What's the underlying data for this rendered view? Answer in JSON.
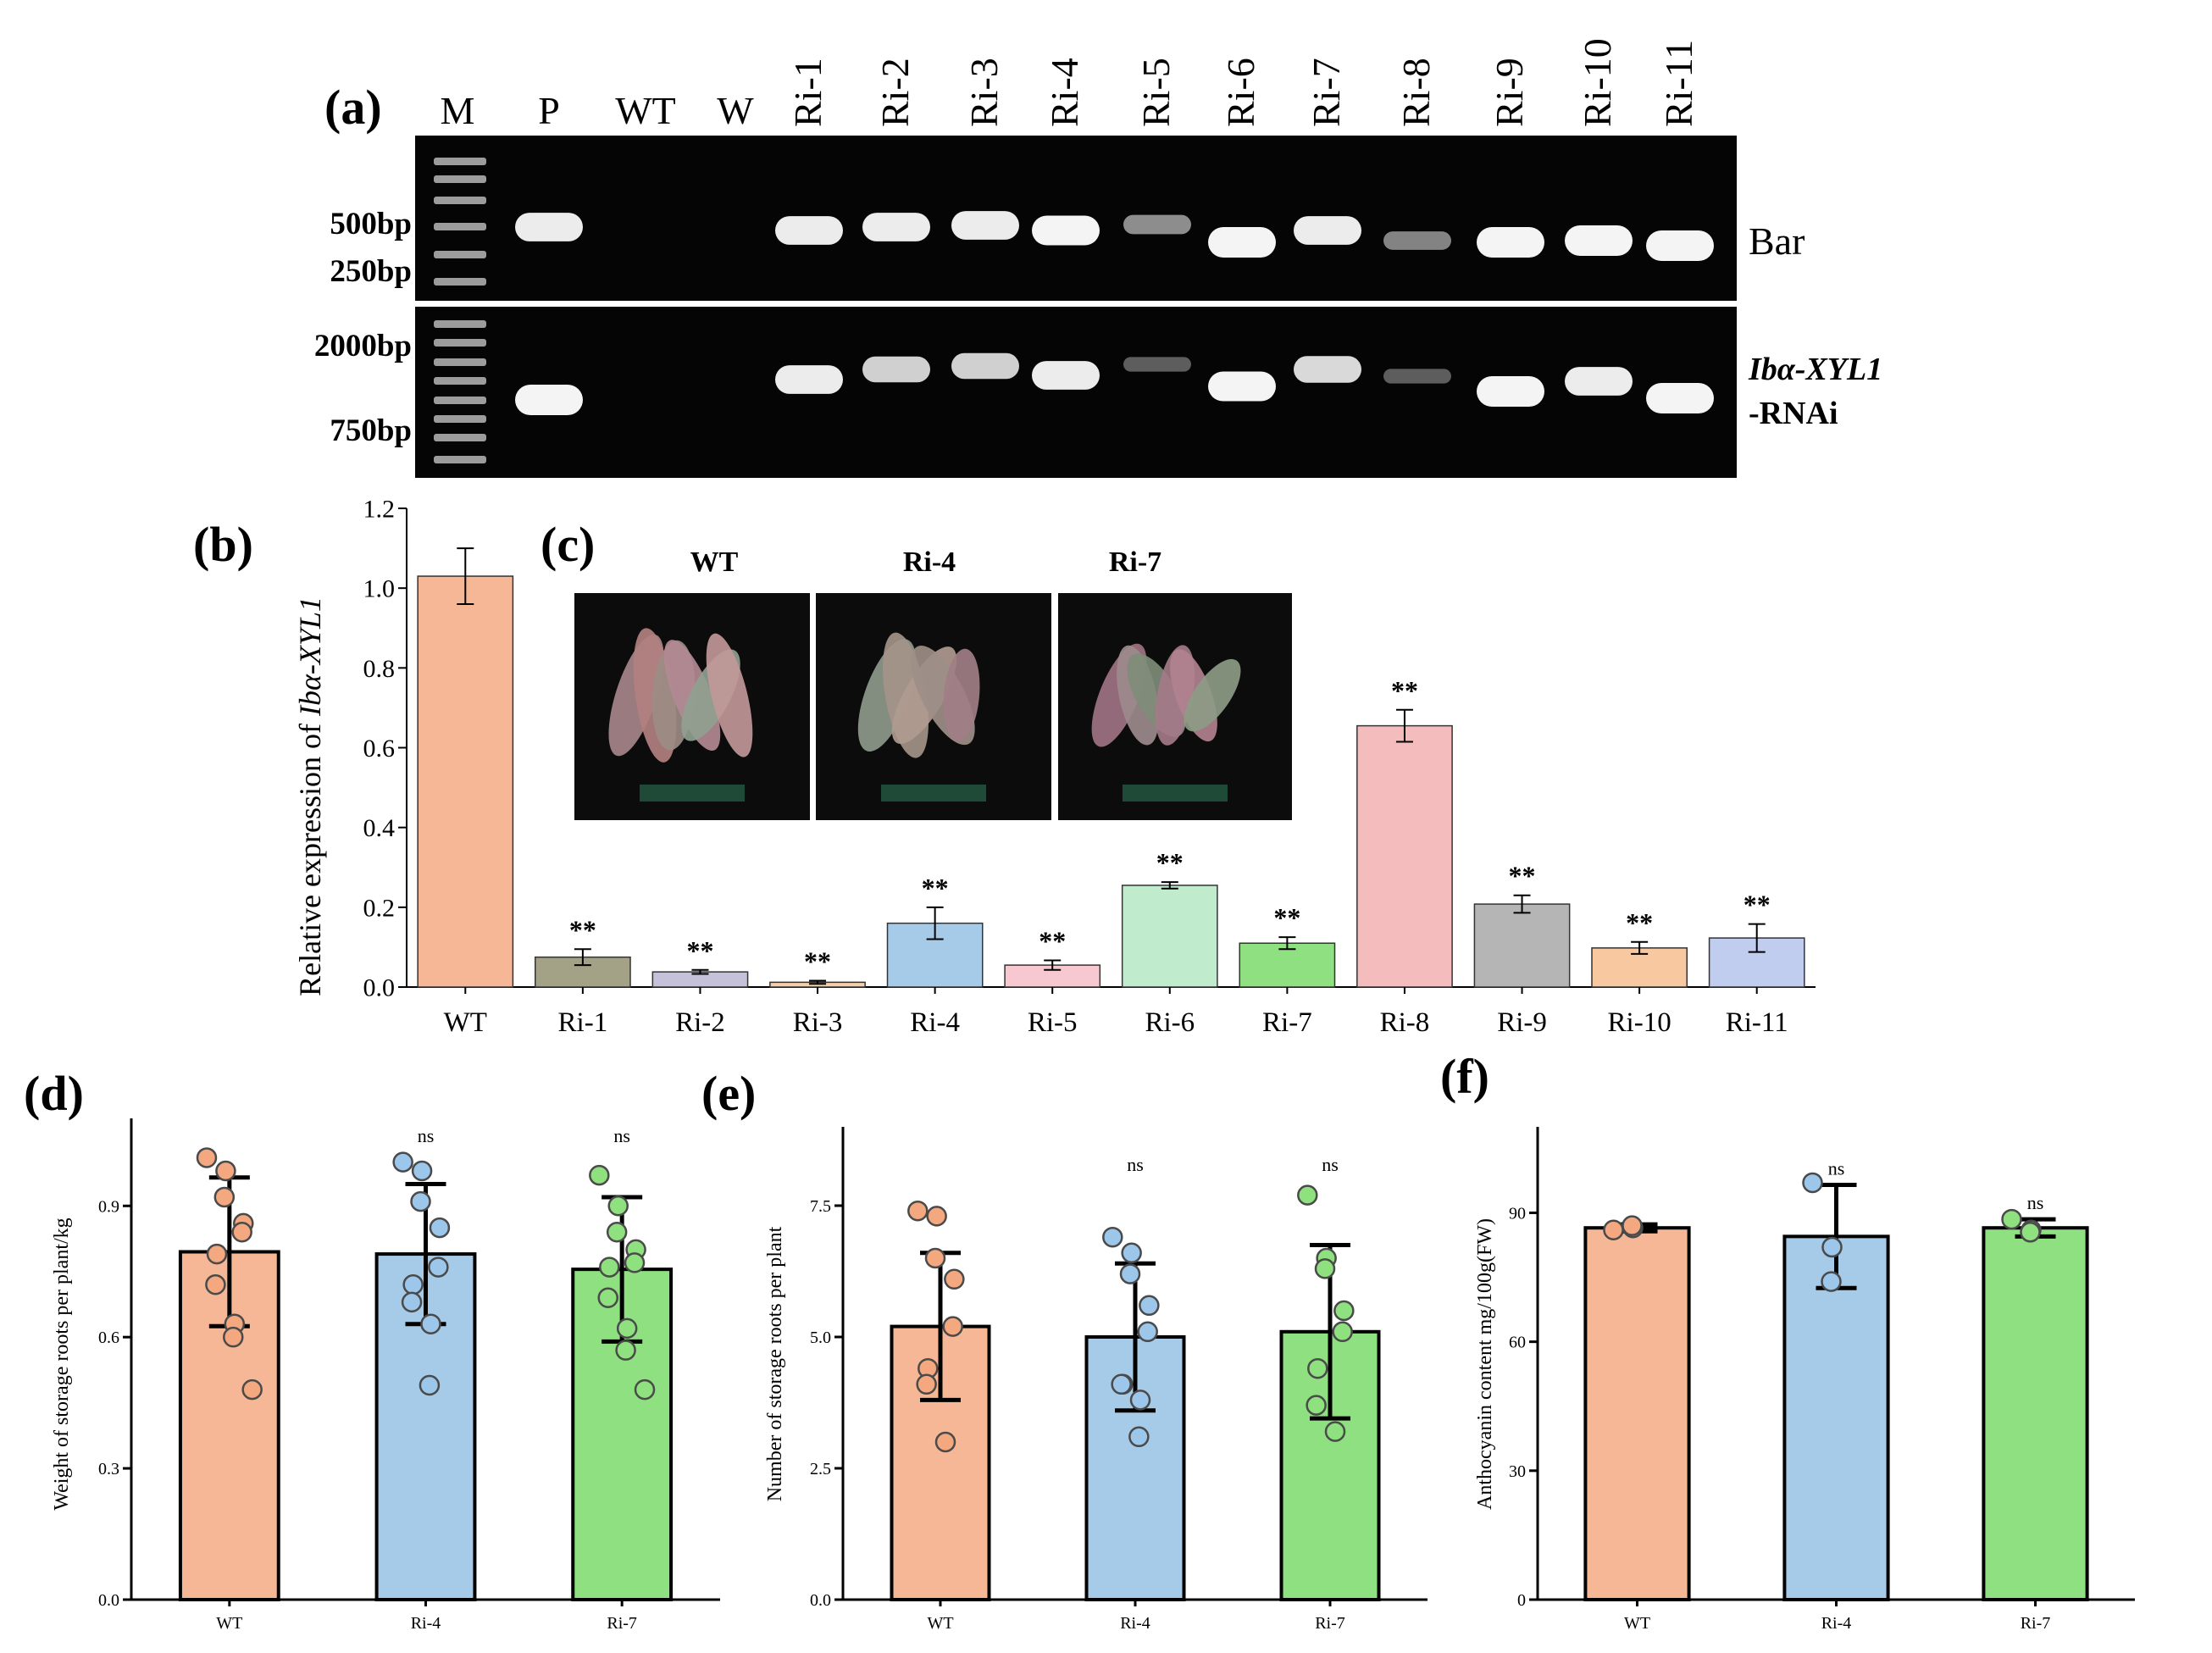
{
  "panel_labels": {
    "a": "(a)",
    "b": "(b)",
    "c": "(c)",
    "d": "(d)",
    "e": "(e)",
    "f": "(f)"
  },
  "gel": {
    "lanes": [
      "M",
      "P",
      "WT",
      "W",
      "Ri-1",
      "Ri-2",
      "Ri-3",
      "Ri-4",
      "Ri-5",
      "Ri-6",
      "Ri-7",
      "Ri-8",
      "Ri-9",
      "Ri-10",
      "Ri-11"
    ],
    "top": {
      "size_markers": [
        "500bp",
        "250bp"
      ],
      "gene_label": "Bar",
      "band_intensity": [
        0,
        0.9,
        0,
        0,
        0.9,
        0.9,
        0.9,
        0.95,
        0.4,
        1.0,
        0.9,
        0.35,
        1.0,
        1.0,
        1.0
      ]
    },
    "bottom": {
      "size_markers": [
        "2000bp",
        "750bp"
      ],
      "gene_label_italic": "Ibα-XYL1",
      "gene_label_suffix": "-RNAi",
      "band_intensity": [
        0,
        1.0,
        0,
        0,
        0.9,
        0.75,
        0.75,
        0.9,
        0.15,
        0.95,
        0.8,
        0.15,
        1.0,
        0.9,
        1.0
      ]
    }
  },
  "photos": {
    "labels": [
      "WT",
      "Ri-4",
      "Ri-7"
    ]
  },
  "colors": {
    "wt": "#f5b795",
    "ri1": "#a3a287",
    "ri2": "#c5c1d9",
    "ri3": "#f4cfa9",
    "ri4": "#a6cbe8",
    "ri5": "#f8c8d0",
    "ri6": "#c0ebcc",
    "ri7": "#8ee080",
    "ri8": "#f4bcbc",
    "ri9": "#b5b5b5",
    "ri10": "#f8c9a0",
    "ri11": "#c0cdef",
    "dot_wt": "#f3a880",
    "dot_ri4": "#9cc6ea",
    "dot_ri7": "#8fe07e"
  },
  "chart_data": [
    {
      "type": "bar",
      "panel": "b",
      "ylabel_prefix": "Relative expression of ",
      "ylabel_italic": "Ibα-XYL1",
      "categories": [
        "WT",
        "Ri-1",
        "Ri-2",
        "Ri-3",
        "Ri-4",
        "Ri-5",
        "Ri-6",
        "Ri-7",
        "Ri-8",
        "Ri-9",
        "Ri-10",
        "Ri-11"
      ],
      "values": [
        1.03,
        0.075,
        0.038,
        0.012,
        0.16,
        0.055,
        0.255,
        0.11,
        0.655,
        0.208,
        0.098,
        0.123
      ],
      "errors": [
        0.07,
        0.02,
        0.005,
        0.004,
        0.04,
        0.012,
        0.008,
        0.015,
        0.04,
        0.022,
        0.015,
        0.035
      ],
      "annotations": [
        "",
        "**",
        "**",
        "**",
        "**",
        "**",
        "**",
        "**",
        "**",
        "**",
        "**",
        "**"
      ],
      "ylim": [
        0,
        1.2
      ],
      "yticks": [
        "0.0",
        "0.2",
        "0.4",
        "0.6",
        "0.8",
        "1.0",
        "1.2"
      ]
    },
    {
      "type": "bar",
      "panel": "d",
      "ylabel": "Weight of storage roots per plant/kg",
      "categories": [
        "WT",
        "Ri-4",
        "Ri-7"
      ],
      "values": [
        0.795,
        0.79,
        0.755
      ],
      "errors": [
        0.17,
        0.16,
        0.165
      ],
      "points": [
        [
          1.01,
          0.98,
          0.92,
          0.86,
          0.84,
          0.79,
          0.72,
          0.63,
          0.6,
          0.48
        ],
        [
          1.0,
          0.98,
          0.91,
          0.85,
          0.76,
          0.72,
          0.68,
          0.63,
          0.49
        ],
        [
          0.97,
          0.9,
          0.84,
          0.8,
          0.77,
          0.76,
          0.69,
          0.62,
          0.57,
          0.48
        ]
      ],
      "annotations": [
        "",
        "ns",
        "ns"
      ],
      "ylim": [
        0,
        1.1
      ],
      "yticks": [
        "0.0",
        "0.3",
        "0.6",
        "0.9"
      ]
    },
    {
      "type": "bar",
      "panel": "e",
      "ylabel": "Number of storage roots per plant",
      "categories": [
        "WT",
        "Ri-4",
        "Ri-7"
      ],
      "values": [
        5.2,
        5.0,
        5.1
      ],
      "errors": [
        1.4,
        1.4,
        1.65
      ],
      "points": [
        [
          7.4,
          7.3,
          6.5,
          6.1,
          5.2,
          4.4,
          4.1,
          3.0
        ],
        [
          6.9,
          6.6,
          6.2,
          5.6,
          5.1,
          4.1,
          4.1,
          3.8,
          3.1
        ],
        [
          7.7,
          6.5,
          6.3,
          5.5,
          5.1,
          4.4,
          3.7,
          3.2
        ]
      ],
      "annotations": [
        "",
        "ns",
        "ns"
      ],
      "ylim": [
        0,
        9
      ],
      "yticks": [
        "0.0",
        "2.5",
        "5.0",
        "7.5"
      ]
    },
    {
      "type": "bar",
      "panel": "f",
      "ylabel": "Anthocyanin content mg/100g(FW)",
      "categories": [
        "WT",
        "Ri-4",
        "Ri-7"
      ],
      "values": [
        86.5,
        84.5,
        86.5
      ],
      "errors": [
        0.8,
        12.0,
        2.0
      ],
      "points": [
        [
          86.0,
          86.5,
          87.0
        ],
        [
          97.0,
          82.0,
          74.0
        ],
        [
          88.5,
          86.0,
          85.5
        ]
      ],
      "annotations": [
        "",
        "ns",
        "ns"
      ],
      "ylim": [
        0,
        110
      ],
      "yticks": [
        "0",
        "30",
        "60",
        "90"
      ]
    }
  ]
}
